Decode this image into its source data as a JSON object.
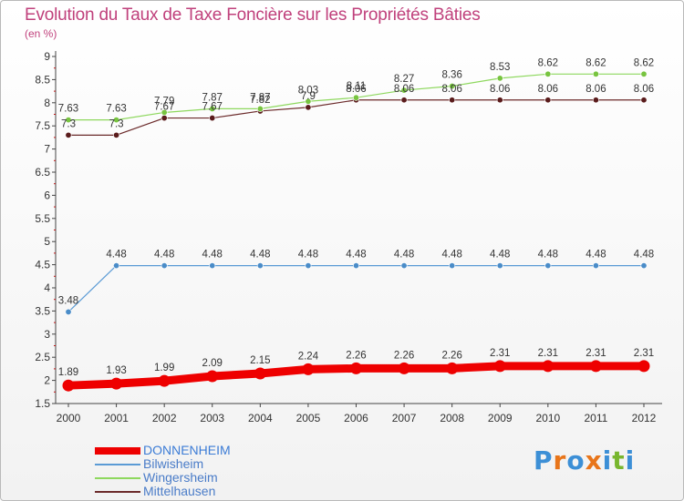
{
  "title": "Evolution du Taux de Taxe Foncière sur les Propriétés Bâties",
  "unit_label": "(en %)",
  "logo": {
    "text": "Proxiti",
    "colors": [
      "#3c8fd6",
      "#e8751a",
      "#3c8fd6",
      "#e8751a",
      "#3c8fd6",
      "#78b62e",
      "#3c8fd6"
    ]
  },
  "chart_data": {
    "type": "line",
    "title": "Evolution du Taux de Taxe Foncière sur les Propriétés Bâties",
    "ylabel": "(en %)",
    "xlabel": "",
    "x": [
      "2000",
      "2001",
      "2002",
      "2003",
      "2004",
      "2005",
      "2006",
      "2007",
      "2008",
      "2009",
      "2010",
      "2011",
      "2012"
    ],
    "ylim": [
      1.5,
      9
    ],
    "yticks": [
      "1.5",
      "2",
      "2.5",
      "3",
      "3.5",
      "4",
      "4.5",
      "5",
      "5.5",
      "6",
      "6.5",
      "7",
      "7.5",
      "8",
      "8.5",
      "9"
    ],
    "grid": false,
    "legend_position": "bottom-left",
    "series": [
      {
        "name": "DONNENHEIM",
        "color": "#ee0000",
        "values": [
          1.89,
          1.93,
          1.99,
          2.09,
          2.15,
          2.24,
          2.26,
          2.26,
          2.26,
          2.31,
          2.31,
          2.31,
          2.31
        ],
        "labels": [
          "1.89",
          "1.93",
          "1.99",
          "2.09",
          "2.15",
          "2.24",
          "2.26",
          "2.26",
          "2.26",
          "2.31",
          "2.31",
          "2.31",
          "2.31"
        ]
      },
      {
        "name": "Bilwisheim",
        "color": "#5b9bd5",
        "values": [
          3.48,
          4.48,
          4.48,
          4.48,
          4.48,
          4.48,
          4.48,
          4.48,
          4.48,
          4.48,
          4.48,
          4.48,
          4.48
        ],
        "labels": [
          "3.48",
          "4.48",
          "4.48",
          "4.48",
          "4.48",
          "4.48",
          "4.48",
          "4.48",
          "4.48",
          "4.48",
          "4.48",
          "4.48",
          "4.48"
        ]
      },
      {
        "name": "Wingersheim",
        "color": "#8ed85e",
        "values": [
          7.63,
          7.63,
          7.79,
          7.87,
          7.87,
          8.03,
          8.11,
          8.27,
          8.36,
          8.53,
          8.62,
          8.62,
          8.62
        ],
        "labels": [
          "7.63",
          "7.63",
          "7.79",
          "7.87",
          "7.87",
          "8.03",
          "8.11",
          "8.27",
          "8.36",
          "8.53",
          "8.62",
          "8.62",
          "8.62"
        ]
      },
      {
        "name": "Mittelhausen",
        "color": "#6b2a2a",
        "values": [
          7.3,
          7.3,
          7.67,
          7.67,
          7.82,
          7.9,
          8.06,
          8.06,
          8.06,
          8.06,
          8.06,
          8.06,
          8.06
        ],
        "labels": [
          "7.3",
          "7.3",
          "7.67",
          "7.67",
          "7.82",
          "7.9",
          "8.06",
          "8.06",
          "8.06",
          "8.06",
          "8.06",
          "8.06",
          "8.06"
        ]
      }
    ]
  }
}
